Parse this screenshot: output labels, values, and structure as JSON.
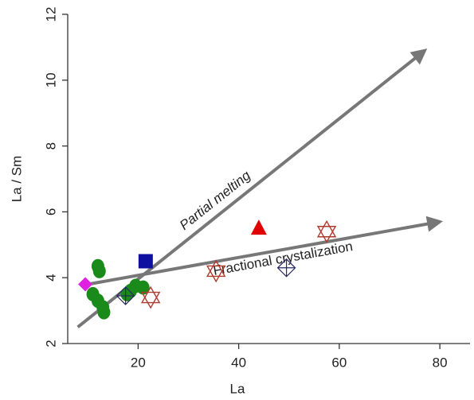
{
  "chart_data": {
    "type": "scatter",
    "x_label": "La",
    "y_label": "La / Sm",
    "xlim": [
      6,
      86
    ],
    "ylim": [
      2,
      12
    ],
    "xticks": [
      20,
      40,
      60,
      80
    ],
    "yticks": [
      2,
      4,
      6,
      8,
      10,
      12
    ],
    "series": [
      {
        "marker": "circle",
        "color": "#1a8a1a",
        "x": [
          12,
          12.3,
          11,
          12,
          13,
          13.2,
          18.5,
          19.5,
          21,
          17.8
        ],
        "values": [
          4.35,
          4.2,
          3.5,
          3.3,
          3.1,
          2.95,
          3.6,
          3.75,
          3.7,
          3.5
        ]
      },
      {
        "marker": "diamond",
        "color": "#e020e0",
        "x": [
          9.5
        ],
        "values": [
          3.8
        ]
      },
      {
        "marker": "square",
        "color": "#1010a0",
        "x": [
          21.5
        ],
        "values": [
          4.5
        ]
      },
      {
        "marker": "triangle",
        "color": "#e00000",
        "x": [
          44
        ],
        "values": [
          5.5
        ]
      },
      {
        "marker": "hexagram",
        "color": "#b03a2e",
        "x": [
          22.5,
          35.5,
          57.5
        ],
        "values": [
          3.4,
          4.2,
          5.4
        ]
      },
      {
        "marker": "crossed-diamond",
        "color": "#2a2a60",
        "x": [
          17.5,
          49.5
        ],
        "values": [
          3.45,
          4.3
        ]
      }
    ],
    "arrows": [
      {
        "label": "Partial melting",
        "color": "#777777",
        "x": [
          8,
          77
        ],
        "y": [
          2.5,
          10.9
        ]
      },
      {
        "label": "Fractional crystalization",
        "color": "#777777",
        "x": [
          10,
          80
        ],
        "y": [
          3.8,
          5.7
        ]
      }
    ]
  }
}
